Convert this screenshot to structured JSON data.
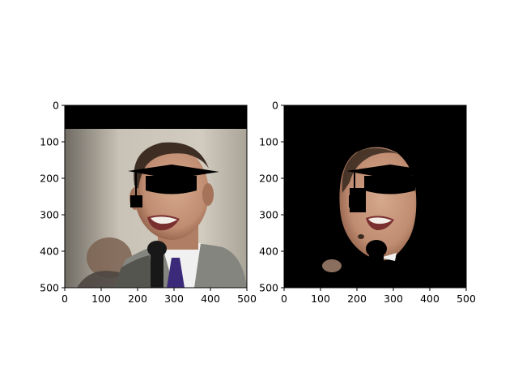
{
  "figure": {
    "background": "#ffffff",
    "axis_color": "#000000",
    "image_colors": {
      "letterbox": "#000000",
      "backdrop_left": "#6f6b63",
      "backdrop_mid": "#c9c2b6",
      "backdrop_right": "#a9a497",
      "suit": "#85857f",
      "suit_dark": "#55554f",
      "skin": "#c79a80",
      "skin_shadow": "#8f5e47",
      "hair": "#3d2d22",
      "shirt": "#f0f0f0",
      "tie": "#3b2a7a",
      "microphone": "#181818",
      "mouth": "#7a2f2f",
      "teeth": "#f2ede6",
      "overlay_mask": "#000000"
    }
  },
  "chart_data": [
    {
      "type": "image",
      "panel": "left",
      "title": "",
      "xlabel": "",
      "ylabel": "",
      "xlim": [
        0,
        500
      ],
      "ylim": [
        500,
        0
      ],
      "xticks": [
        0,
        100,
        200,
        300,
        400,
        500
      ],
      "yticks": [
        0,
        100,
        200,
        300,
        400,
        500
      ],
      "content_description_icon": "photo-face-with-graduation-cap-overlay-icon"
    },
    {
      "type": "image",
      "panel": "right",
      "title": "",
      "xlabel": "",
      "ylabel": "",
      "xlim": [
        0,
        500
      ],
      "ylim": [
        500,
        0
      ],
      "xticks": [
        0,
        100,
        200,
        300,
        400,
        500
      ],
      "yticks": [
        0,
        100,
        200,
        300,
        400,
        500
      ],
      "content_description_icon": "segmented-face-on-black-icon"
    }
  ]
}
